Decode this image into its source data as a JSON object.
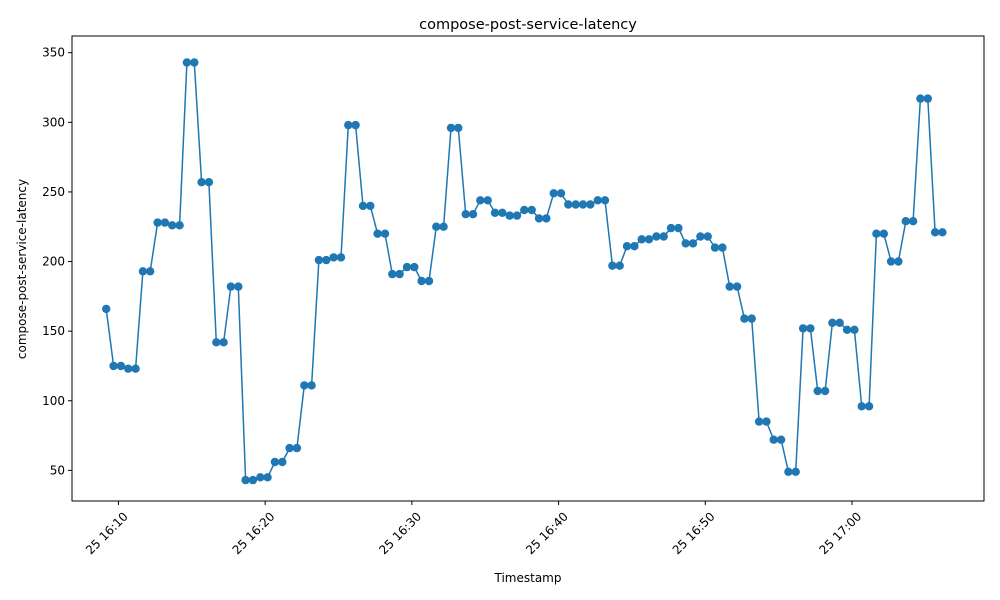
{
  "chart_data": {
    "type": "line",
    "title": "compose-post-service-latency",
    "xlabel": "Timestamp",
    "ylabel": "compose-post-service-latency",
    "x_ticks": [
      "25 16:10",
      "25 16:20",
      "25 16:30",
      "25 16:40",
      "25 16:50",
      "25 17:00"
    ],
    "y_ticks": [
      "50",
      "100",
      "150",
      "200",
      "250",
      "300",
      "350"
    ],
    "xlim": [
      "2024-01-25 16:06:50",
      "2024-01-25 17:09:00"
    ],
    "ylim": [
      28,
      362
    ],
    "grid": false,
    "legend": "none",
    "color": "#1f77b4",
    "series": [
      {
        "x": [
          "16:09:10",
          "16:09:40",
          "16:10:10",
          "16:10:40",
          "16:11:10",
          "16:11:40",
          "16:12:10",
          "16:12:40",
          "16:13:10",
          "16:13:40",
          "16:14:10",
          "16:14:40",
          "16:15:10",
          "16:15:40",
          "16:16:10",
          "16:16:40",
          "16:17:10",
          "16:17:40",
          "16:18:10",
          "16:18:40",
          "16:19:10",
          "16:19:40",
          "16:20:10",
          "16:20:40",
          "16:21:10",
          "16:21:40",
          "16:22:10",
          "16:22:40",
          "16:23:10",
          "16:23:40",
          "16:24:10",
          "16:24:40",
          "16:25:10",
          "16:25:40",
          "16:26:10",
          "16:26:40",
          "16:27:10",
          "16:27:40",
          "16:28:10",
          "16:28:40",
          "16:29:10",
          "16:29:40",
          "16:30:10",
          "16:30:40",
          "16:31:10",
          "16:31:40",
          "16:32:10",
          "16:32:40",
          "16:33:10",
          "16:33:40",
          "16:34:10",
          "16:34:40",
          "16:35:10",
          "16:35:40",
          "16:36:10",
          "16:36:40",
          "16:37:10",
          "16:37:40",
          "16:38:10",
          "16:38:40",
          "16:39:10",
          "16:39:40",
          "16:40:10",
          "16:40:40",
          "16:41:10",
          "16:41:40",
          "16:42:10",
          "16:42:40",
          "16:43:10",
          "16:43:40",
          "16:44:10",
          "16:44:40",
          "16:45:10",
          "16:45:40",
          "16:46:10",
          "16:46:40",
          "16:47:10",
          "16:47:40",
          "16:48:10",
          "16:48:40",
          "16:49:10",
          "16:49:40",
          "16:50:10",
          "16:50:40",
          "16:51:10",
          "16:51:40",
          "16:52:10",
          "16:52:40",
          "16:53:10",
          "16:53:40",
          "16:54:10",
          "16:54:40",
          "16:55:10",
          "16:55:40",
          "16:56:10",
          "16:56:40",
          "16:57:10",
          "16:57:40",
          "16:58:10",
          "16:58:40",
          "16:59:10",
          "16:59:40",
          "17:00:10",
          "17:00:40",
          "17:01:10",
          "17:01:40",
          "17:02:10",
          "17:02:40",
          "17:03:10",
          "17:03:40",
          "17:04:10",
          "17:04:40",
          "17:05:10",
          "17:05:40",
          "17:06:10"
        ],
        "y": [
          166,
          125,
          125,
          123,
          123,
          193,
          193,
          228,
          228,
          226,
          226,
          343,
          343,
          257,
          257,
          142,
          142,
          182,
          182,
          43,
          43,
          45,
          45,
          56,
          56,
          66,
          66,
          111,
          111,
          201,
          201,
          203,
          203,
          298,
          298,
          240,
          240,
          220,
          220,
          191,
          191,
          196,
          196,
          186,
          186,
          225,
          225,
          296,
          296,
          234,
          234,
          244,
          244,
          235,
          235,
          233,
          233,
          237,
          237,
          231,
          231,
          249,
          249,
          241,
          241,
          241,
          241,
          244,
          244,
          197,
          197,
          211,
          211,
          216,
          216,
          218,
          218,
          224,
          224,
          213,
          213,
          218,
          218,
          210,
          210,
          182,
          182,
          159,
          159,
          85,
          85,
          72,
          72,
          49,
          49,
          152,
          152,
          107,
          107,
          156,
          156,
          151,
          151,
          96,
          96,
          220,
          220,
          200,
          200,
          229,
          229,
          317,
          317,
          221,
          221
        ]
      }
    ]
  }
}
